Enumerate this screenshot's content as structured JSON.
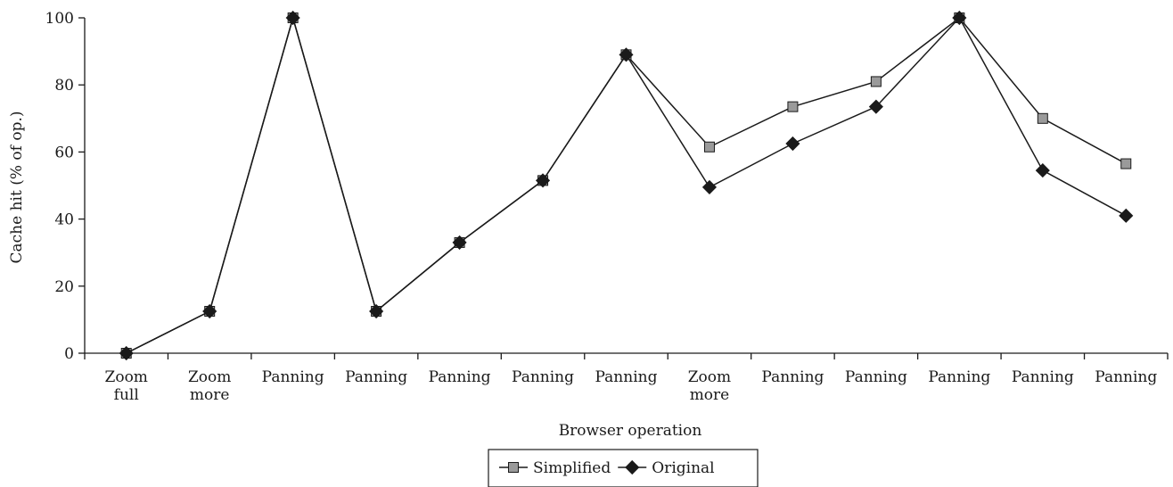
{
  "chart_data": {
    "type": "line",
    "title": "",
    "xlabel": "Browser operation",
    "ylabel": "Cache hit (% of op.)",
    "ylim": [
      0,
      100
    ],
    "yticks": [
      0,
      20,
      40,
      60,
      80,
      100
    ],
    "grid": false,
    "legend_position": "bottom-center",
    "categories": [
      [
        "Zoom",
        "full"
      ],
      [
        "Zoom",
        "more"
      ],
      [
        "Panning"
      ],
      [
        "Panning"
      ],
      [
        "Panning"
      ],
      [
        "Panning"
      ],
      [
        "Panning"
      ],
      [
        "Zoom",
        "more"
      ],
      [
        "Panning"
      ],
      [
        "Panning"
      ],
      [
        "Panning"
      ],
      [
        "Panning"
      ],
      [
        "Panning"
      ]
    ],
    "series": [
      {
        "name": "Simplified",
        "marker": "square",
        "marker_color": "#9a9a9a",
        "values": [
          0,
          12.5,
          100,
          12.5,
          33,
          51.5,
          89,
          61.5,
          73.5,
          81,
          100,
          70,
          56.5
        ]
      },
      {
        "name": "Original",
        "marker": "diamond",
        "marker_color": "#1a1a1a",
        "values": [
          0,
          12.5,
          100,
          12.5,
          33,
          51.5,
          89,
          49.5,
          62.5,
          73.5,
          100,
          54.5,
          41
        ]
      }
    ]
  }
}
